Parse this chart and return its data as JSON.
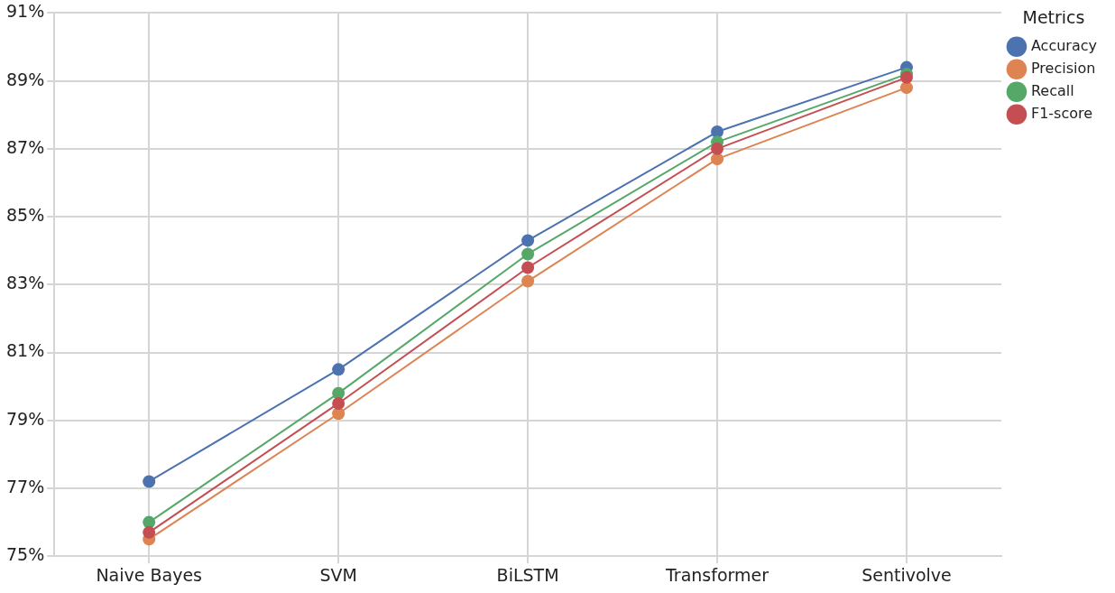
{
  "chart_data": {
    "type": "line",
    "categories": [
      "Naive Bayes",
      "SVM",
      "BiLSTM",
      "Transformer",
      "Sentivolve"
    ],
    "series": [
      {
        "name": "Accuracy",
        "color": "#4c72b0",
        "values": [
          77.2,
          80.5,
          84.3,
          87.5,
          89.4
        ]
      },
      {
        "name": "Precision",
        "color": "#dd8452",
        "values": [
          75.5,
          79.2,
          83.1,
          86.7,
          88.8
        ]
      },
      {
        "name": "Recall",
        "color": "#55a868",
        "values": [
          76.0,
          79.8,
          83.9,
          87.2,
          89.2
        ]
      },
      {
        "name": "F1-score",
        "color": "#c44e52",
        "values": [
          75.7,
          79.5,
          83.5,
          87.0,
          89.1
        ]
      }
    ],
    "ylim": [
      75,
      91
    ],
    "yticks": [
      {
        "value": 75,
        "label": "75%"
      },
      {
        "value": 77,
        "label": "77%"
      },
      {
        "value": 79,
        "label": "79%"
      },
      {
        "value": 81,
        "label": "81%"
      },
      {
        "value": 83,
        "label": "83%"
      },
      {
        "value": 85,
        "label": "85%"
      },
      {
        "value": 87,
        "label": "87%"
      },
      {
        "value": 89,
        "label": "89%"
      },
      {
        "value": 91,
        "label": "91%"
      }
    ],
    "legend_title": "Metrics",
    "legend": "top right",
    "grid": true,
    "marker": "circle",
    "line_style": "solid"
  }
}
